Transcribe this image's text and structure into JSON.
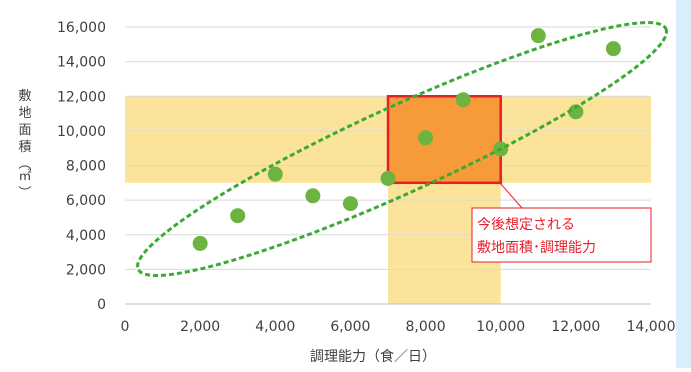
{
  "chart_data": {
    "type": "scatter",
    "xlabel": "調理能力（食／日）",
    "ylabel": "敷地面積（㎡）",
    "xlim": [
      0,
      14000
    ],
    "ylim": [
      0,
      16000
    ],
    "x_ticks": [
      "0",
      "2,000",
      "4,000",
      "6,000",
      "8,000",
      "10,000",
      "12,000",
      "14,000"
    ],
    "y_ticks": [
      "0",
      "2,000",
      "4,000",
      "6,000",
      "8,000",
      "10,000",
      "12,000",
      "14,000",
      "16,000"
    ],
    "grid": "horizontal",
    "series": [
      {
        "color": "#6db33f",
        "points": [
          {
            "x": 2000,
            "y": 3500
          },
          {
            "x": 3000,
            "y": 5100
          },
          {
            "x": 4000,
            "y": 7500
          },
          {
            "x": 5000,
            "y": 6250
          },
          {
            "x": 6000,
            "y": 5800
          },
          {
            "x": 7000,
            "y": 7250
          },
          {
            "x": 8000,
            "y": 9600
          },
          {
            "x": 9000,
            "y": 11800
          },
          {
            "x": 10000,
            "y": 8950
          },
          {
            "x": 11000,
            "y": 15500
          },
          {
            "x": 12000,
            "y": 11100
          },
          {
            "x": 13000,
            "y": 14750
          }
        ]
      }
    ],
    "shaded_bands": {
      "y_range": [
        7000,
        12000
      ],
      "x_range": [
        7000,
        10000
      ],
      "color": "#fbe49a"
    },
    "highlight_box": {
      "x_range": [
        7000,
        10000
      ],
      "y_range": [
        7000,
        12000
      ],
      "fill": "#f79a3a",
      "stroke": "#e6202a"
    },
    "trend_ellipse": {
      "stroke": "#3aaa35",
      "style": "dashed"
    },
    "annotation": {
      "lines": [
        "今後想定される",
        "敷地面積･調理能力"
      ],
      "text_color": "#e6202a",
      "border_color": "#e6202a"
    }
  },
  "colors": {
    "side_strip": "#d9eefb",
    "axis": "#bfbfbf",
    "gridline": "#d9d9d9",
    "tick_text": "#404040"
  }
}
